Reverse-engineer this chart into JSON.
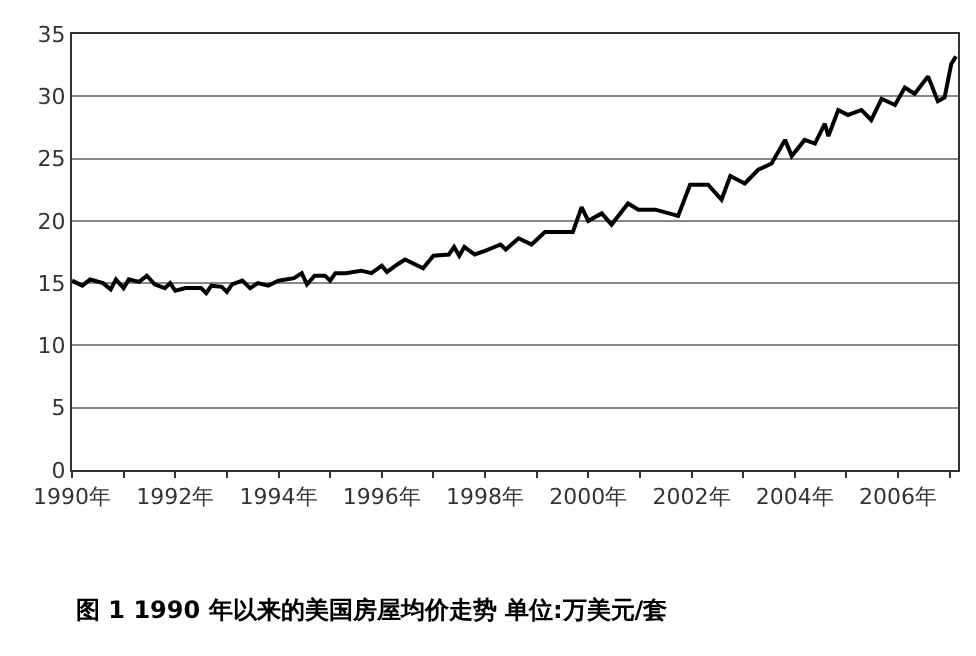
{
  "chart_data": {
    "type": "line",
    "annotations": [
      "图 1 1990 年以来的美国房屋均价走势 单位:万美元/套"
    ],
    "x": [
      1990.0,
      1990.2,
      1990.35,
      1990.6,
      1990.75,
      1990.85,
      1991.0,
      1991.1,
      1991.3,
      1991.45,
      1991.6,
      1991.8,
      1991.9,
      1992.0,
      1992.2,
      1992.5,
      1992.6,
      1992.7,
      1992.9,
      1993.0,
      1993.1,
      1993.3,
      1993.45,
      1993.6,
      1993.8,
      1994.0,
      1994.3,
      1994.45,
      1994.55,
      1994.7,
      1994.9,
      1995.0,
      1995.1,
      1995.3,
      1995.6,
      1995.8,
      1996.0,
      1996.1,
      1996.3,
      1996.45,
      1996.6,
      1996.8,
      1997.0,
      1997.3,
      1997.4,
      1997.5,
      1997.6,
      1997.8,
      1998.0,
      1998.3,
      1998.4,
      1998.65,
      1998.9,
      1999.16,
      1999.7,
      1999.87,
      2000.0,
      2000.26,
      2000.45,
      2000.77,
      2000.97,
      2001.3,
      2001.74,
      2001.97,
      2002.32,
      2002.58,
      2002.75,
      2003.03,
      2003.29,
      2003.55,
      2003.81,
      2003.94,
      2004.19,
      2004.39,
      2004.58,
      2004.65,
      2004.84,
      2005.03,
      2005.29,
      2005.48,
      2005.68,
      2005.94,
      2006.13,
      2006.32,
      2006.58,
      2006.77,
      2006.9,
      2007.03,
      2007.12
    ],
    "values": [
      15.2,
      14.8,
      15.3,
      15.0,
      14.5,
      15.3,
      14.6,
      15.3,
      15.1,
      15.6,
      14.9,
      14.6,
      15.0,
      14.4,
      14.6,
      14.6,
      14.2,
      14.8,
      14.7,
      14.3,
      14.9,
      15.2,
      14.6,
      15.0,
      14.8,
      15.2,
      15.4,
      15.8,
      14.9,
      15.6,
      15.6,
      15.2,
      15.8,
      15.8,
      16.0,
      15.8,
      16.4,
      15.9,
      16.5,
      16.9,
      16.6,
      16.2,
      17.2,
      17.3,
      17.9,
      17.2,
      17.9,
      17.3,
      17.6,
      18.1,
      17.7,
      18.6,
      18.1,
      19.1,
      19.1,
      21.1,
      20.0,
      20.6,
      19.7,
      21.4,
      20.9,
      20.9,
      20.4,
      22.9,
      22.9,
      21.7,
      23.6,
      23.0,
      24.1,
      24.6,
      26.5,
      25.2,
      26.5,
      26.2,
      27.8,
      26.8,
      28.9,
      28.5,
      28.9,
      28.1,
      29.8,
      29.3,
      30.7,
      30.2,
      31.6,
      29.6,
      29.9,
      32.6,
      33.2
    ],
    "color": "#000000",
    "xlim": [
      1990,
      2007.16
    ],
    "xticks": [
      {
        "value": 1990,
        "label": "1990年"
      },
      {
        "value": 1991,
        "label": null
      },
      {
        "value": 1992,
        "label": "1992年"
      },
      {
        "value": 1993,
        "label": null
      },
      {
        "value": 1994,
        "label": "1994年"
      },
      {
        "value": 1995,
        "label": null
      },
      {
        "value": 1996,
        "label": "1996年"
      },
      {
        "value": 1997,
        "label": null
      },
      {
        "value": 1998,
        "label": "1998年"
      },
      {
        "value": 1999,
        "label": null
      },
      {
        "value": 2000,
        "label": "2000年"
      },
      {
        "value": 2001,
        "label": null
      },
      {
        "value": 2002,
        "label": "2002年"
      },
      {
        "value": 2003,
        "label": null
      },
      {
        "value": 2004,
        "label": "2004年"
      },
      {
        "value": 2005,
        "label": null
      },
      {
        "value": 2006,
        "label": "2006年"
      },
      {
        "value": 2007,
        "label": null
      }
    ],
    "ylim": [
      0,
      35
    ],
    "yticks": [
      0,
      5,
      10,
      15,
      20,
      25,
      30,
      35
    ],
    "grid": "y",
    "marker": "none",
    "line_style": "solid"
  }
}
